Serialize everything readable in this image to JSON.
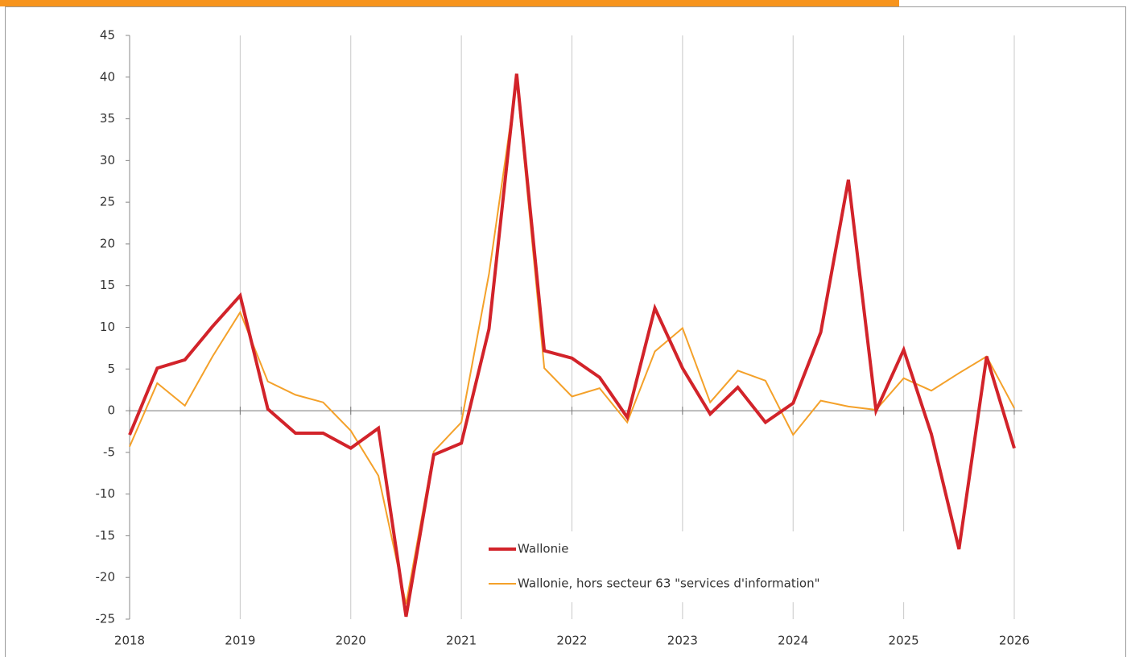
{
  "chart_data": {
    "type": "line",
    "x": [
      2018,
      2018.25,
      2018.5,
      2018.75,
      2019,
      2019.25,
      2019.5,
      2019.75,
      2020,
      2020.25,
      2020.5,
      2020.75,
      2021,
      2021.25,
      2021.5,
      2021.75,
      2022,
      2022.25,
      2022.5,
      2022.75,
      2023,
      2023.25,
      2023.5,
      2023.75,
      2024,
      2024.25,
      2024.5,
      2024.75,
      2025,
      2025.25,
      2025.5,
      2025.75,
      2026
    ],
    "series": [
      {
        "name": "Wallonie",
        "color": "#d2232a",
        "width": 4,
        "values": [
          -2.9,
          5.1,
          6.1,
          10.1,
          13.8,
          0.2,
          -2.7,
          -2.7,
          -4.5,
          -2.1,
          -24.7,
          -5.3,
          -3.9,
          9.8,
          40.4,
          7.2,
          6.3,
          4.0,
          -0.8,
          12.3,
          5.1,
          -0.4,
          2.8,
          -1.4,
          0.9,
          9.4,
          27.7,
          0.0,
          7.3,
          -2.8,
          -16.6,
          6.5,
          -4.5
        ]
      },
      {
        "name": "Wallonie, hors secteur 63 \"services d'information\"",
        "color": "#f4a12a",
        "width": 2,
        "values": [
          -4.3,
          3.3,
          0.6,
          6.5,
          11.8,
          3.5,
          1.9,
          1.0,
          -2.4,
          -7.8,
          -23.2,
          -4.9,
          -1.4,
          16.4,
          39.6,
          5.1,
          1.7,
          2.7,
          -1.4,
          7.1,
          9.9,
          1.0,
          4.8,
          3.6,
          -2.9,
          1.2,
          0.5,
          0.1,
          3.9,
          2.4,
          4.5,
          6.5,
          0.3
        ]
      }
    ],
    "xlim": [
      2018,
      2026
    ],
    "xticks": [
      2018,
      2019,
      2020,
      2021,
      2022,
      2023,
      2024,
      2025,
      2026
    ],
    "ylim": [
      -25,
      45
    ],
    "yticks": [
      -25,
      -20,
      -15,
      -10,
      -5,
      0,
      5,
      10,
      15,
      20,
      25,
      30,
      35,
      40,
      45
    ],
    "grid": "x"
  }
}
